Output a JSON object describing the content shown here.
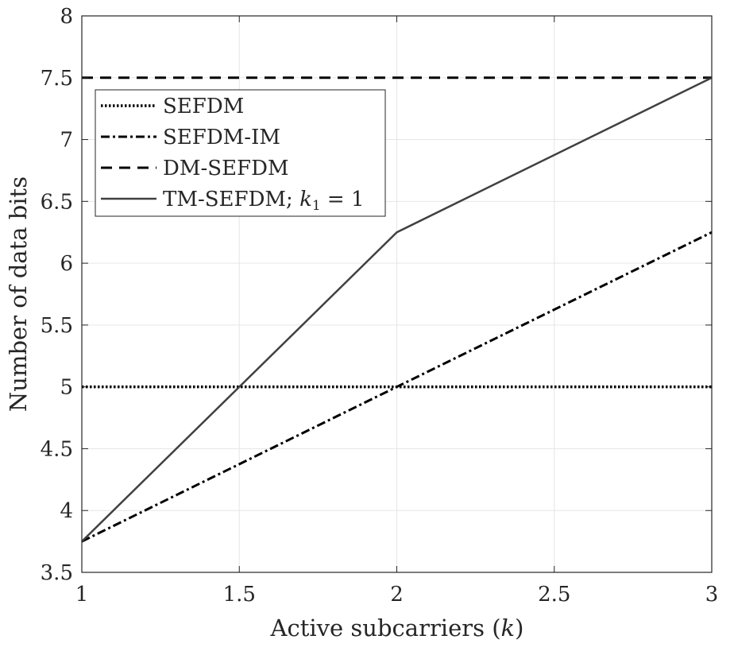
{
  "chart_data": {
    "type": "line",
    "title": "",
    "xlabel": "Active subcarriers (k)",
    "xlabel_main": "Active subcarriers (",
    "xlabel_var": "k",
    "xlabel_end": ")",
    "ylabel": "Number of data bits",
    "xlim": [
      1,
      3
    ],
    "ylim": [
      3.5,
      8
    ],
    "xticks": [
      1,
      1.5,
      2,
      2.5,
      3
    ],
    "xtick_labels": [
      "1",
      "1.5",
      "2",
      "2.5",
      "3"
    ],
    "yticks": [
      3.5,
      4,
      4.5,
      5,
      5.5,
      6,
      6.5,
      7,
      7.5,
      8
    ],
    "ytick_labels": [
      "3.5",
      "4",
      "4.5",
      "5",
      "5.5",
      "6",
      "6.5",
      "7",
      "7.5",
      "8"
    ],
    "grid": true,
    "legend_position": "top-left",
    "series": [
      {
        "name": "SEFDM",
        "style": "dotted",
        "color": "#000000",
        "x": [
          1,
          2,
          3
        ],
        "y": [
          5,
          5,
          5
        ]
      },
      {
        "name": "SEFDM-IM",
        "style": "dashdot",
        "color": "#000000",
        "x": [
          1,
          2,
          3
        ],
        "y": [
          3.75,
          5,
          6.25
        ]
      },
      {
        "name": "DM-SEFDM",
        "style": "dashed",
        "color": "#000000",
        "x": [
          1,
          2,
          3
        ],
        "y": [
          7.5,
          7.5,
          7.5
        ]
      },
      {
        "name": "TM-SEFDM; k1 = 1",
        "style": "solid",
        "color": "#404040",
        "x": [
          1,
          2,
          3
        ],
        "y": [
          3.75,
          6.25,
          7.5
        ]
      }
    ],
    "legend_labels": [
      "SEFDM",
      "SEFDM-IM",
      "DM-SEFDM",
      "TM-SEFDM; "
    ],
    "legend_math": {
      "var": "k",
      "sub": "1",
      "rest": " = 1"
    }
  }
}
